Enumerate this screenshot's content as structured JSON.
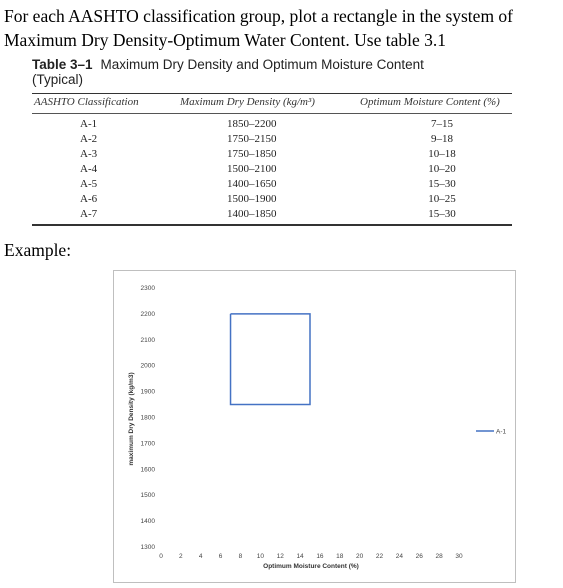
{
  "problem": {
    "text": "For each AASHTO classification group, plot a rectangle in the system of Maximum Dry Density-Optimum Water Content. Use table 3.1"
  },
  "table": {
    "number": "Table 3–1",
    "title": "Maximum Dry Density and Optimum Moisture Content (Typical)",
    "headers": [
      "AASHTO Classification",
      "Maximum Dry Density (kg/m³)",
      "Optimum Moisture Content (%)"
    ],
    "rows": [
      [
        "A-1",
        "1850–2200",
        "7–15"
      ],
      [
        "A-2",
        "1750–2150",
        "9–18"
      ],
      [
        "A-3",
        "1750–1850",
        "10–18"
      ],
      [
        "A-4",
        "1500–2100",
        "10–20"
      ],
      [
        "A-5",
        "1400–1650",
        "15–30"
      ],
      [
        "A-6",
        "1500–1900",
        "10–25"
      ],
      [
        "A-7",
        "1400–1850",
        "15–30"
      ]
    ]
  },
  "example_label": "Example:",
  "chart_data": {
    "type": "line",
    "xlabel": "Optimum Moisture Content (%)",
    "ylabel": "maximum Dry Density (kg/m3)",
    "xlim": [
      0,
      30
    ],
    "ylim": [
      1300,
      2300
    ],
    "xticks": [
      0,
      2,
      4,
      6,
      8,
      10,
      12,
      14,
      16,
      18,
      20,
      22,
      24,
      26,
      28,
      30
    ],
    "yticks": [
      1300,
      1400,
      1500,
      1600,
      1700,
      1800,
      1900,
      2000,
      2100,
      2200,
      2300
    ],
    "grid": false,
    "legend": "right",
    "series_color": "#4472c4",
    "series": [
      {
        "name": "A-1",
        "x": [
          7,
          15,
          15,
          7,
          7
        ],
        "y": [
          2200,
          2200,
          1850,
          1850,
          2200
        ]
      }
    ]
  }
}
